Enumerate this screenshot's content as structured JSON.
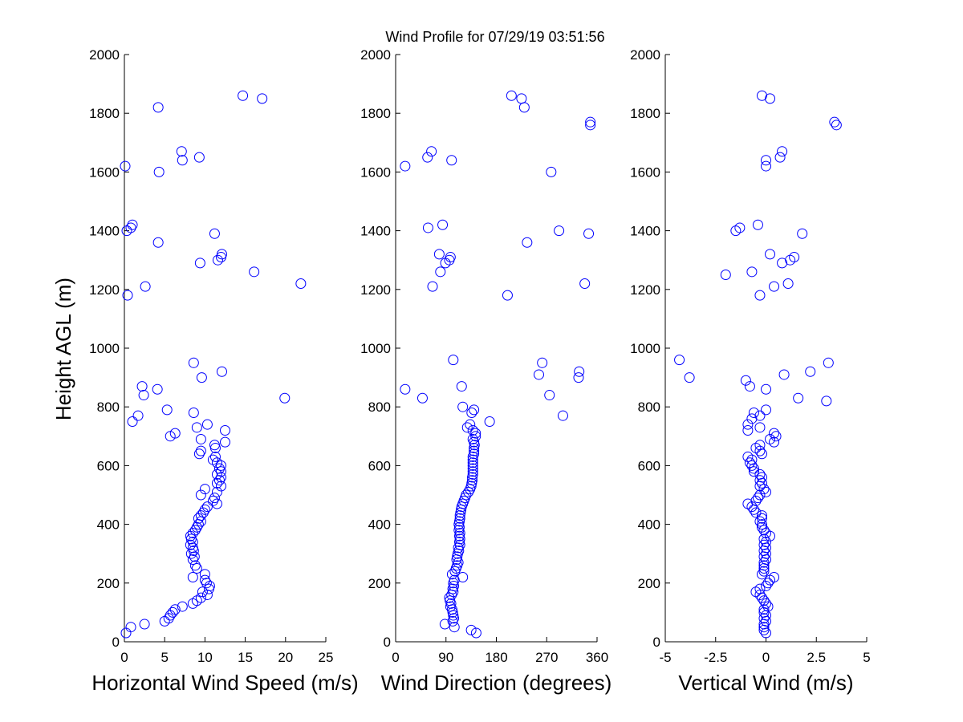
{
  "figure_title": "Wind Profile for  07/29/19 03:51:56",
  "ylabel": "Height AGL (m)",
  "marker_color": "#0000ff",
  "chart_data": [
    {
      "type": "scatter",
      "xlabel": "Horizontal Wind Speed (m/s)",
      "ylabel": "Height AGL (m)",
      "xlim": [
        0,
        25
      ],
      "ylim": [
        0,
        2000
      ],
      "xticks": [
        0,
        5,
        10,
        15,
        20,
        25
      ],
      "xtick_labels": [
        "0",
        "5",
        "10",
        "15",
        "20",
        "25"
      ],
      "yticks": [
        0,
        200,
        400,
        600,
        800,
        1000,
        1200,
        1400,
        1600,
        1800,
        2000
      ],
      "ytick_labels": [
        "0",
        "200",
        "400",
        "600",
        "800",
        "1000",
        "1200",
        "1400",
        "1600",
        "1800",
        "2000"
      ],
      "points": [
        [
          0.2,
          30
        ],
        [
          0.8,
          50
        ],
        [
          2.5,
          60
        ],
        [
          5.0,
          70
        ],
        [
          5.5,
          80
        ],
        [
          5.7,
          90
        ],
        [
          6.0,
          100
        ],
        [
          6.3,
          110
        ],
        [
          7.2,
          120
        ],
        [
          8.5,
          130
        ],
        [
          9.0,
          140
        ],
        [
          9.5,
          150
        ],
        [
          10.3,
          160
        ],
        [
          9.7,
          170
        ],
        [
          10.5,
          180
        ],
        [
          10.6,
          190
        ],
        [
          10.2,
          200
        ],
        [
          10.0,
          210
        ],
        [
          8.5,
          220
        ],
        [
          10.0,
          230
        ],
        [
          9.0,
          250
        ],
        [
          8.8,
          260
        ],
        [
          8.5,
          280
        ],
        [
          8.7,
          290
        ],
        [
          8.3,
          300
        ],
        [
          8.6,
          310
        ],
        [
          8.5,
          320
        ],
        [
          8.2,
          330
        ],
        [
          8.5,
          340
        ],
        [
          8.3,
          350
        ],
        [
          8.2,
          360
        ],
        [
          8.5,
          370
        ],
        [
          8.8,
          380
        ],
        [
          9.0,
          390
        ],
        [
          9.2,
          400
        ],
        [
          9.5,
          410
        ],
        [
          9.2,
          420
        ],
        [
          9.5,
          430
        ],
        [
          9.8,
          440
        ],
        [
          10.0,
          450
        ],
        [
          10.3,
          460
        ],
        [
          11.5,
          470
        ],
        [
          11.0,
          480
        ],
        [
          11.2,
          490
        ],
        [
          9.5,
          500
        ],
        [
          11.5,
          510
        ],
        [
          10.0,
          520
        ],
        [
          12.0,
          530
        ],
        [
          11.5,
          540
        ],
        [
          11.8,
          550
        ],
        [
          12.0,
          560
        ],
        [
          11.5,
          570
        ],
        [
          12.0,
          580
        ],
        [
          11.8,
          590
        ],
        [
          12.0,
          600
        ],
        [
          11.5,
          610
        ],
        [
          11.0,
          620
        ],
        [
          11.3,
          630
        ],
        [
          9.3,
          640
        ],
        [
          9.5,
          650
        ],
        [
          11.3,
          660
        ],
        [
          11.2,
          670
        ],
        [
          12.5,
          680
        ],
        [
          9.5,
          690
        ],
        [
          5.7,
          700
        ],
        [
          6.3,
          710
        ],
        [
          12.5,
          720
        ],
        [
          9.0,
          730
        ],
        [
          10.3,
          740
        ],
        [
          1.0,
          750
        ],
        [
          1.7,
          770
        ],
        [
          8.6,
          780
        ],
        [
          5.3,
          790
        ],
        [
          19.9,
          830
        ],
        [
          2.4,
          840
        ],
        [
          4.1,
          860
        ],
        [
          2.2,
          870
        ],
        [
          9.6,
          900
        ],
        [
          12.1,
          920
        ],
        [
          8.6,
          950
        ],
        [
          0.4,
          1180
        ],
        [
          2.6,
          1210
        ],
        [
          21.9,
          1220
        ],
        [
          16.1,
          1260
        ],
        [
          9.4,
          1290
        ],
        [
          11.6,
          1300
        ],
        [
          12.0,
          1310
        ],
        [
          12.1,
          1320
        ],
        [
          4.2,
          1360
        ],
        [
          11.2,
          1390
        ],
        [
          0.3,
          1400
        ],
        [
          0.8,
          1410
        ],
        [
          1.0,
          1420
        ],
        [
          4.3,
          1600
        ],
        [
          0.1,
          1620
        ],
        [
          7.2,
          1640
        ],
        [
          9.3,
          1650
        ],
        [
          7.1,
          1670
        ],
        [
          4.2,
          1820
        ],
        [
          17.1,
          1850
        ],
        [
          14.7,
          1860
        ]
      ]
    },
    {
      "type": "scatter",
      "xlabel": "Wind Direction (degrees)",
      "ylabel": "",
      "xlim": [
        0,
        360
      ],
      "ylim": [
        0,
        2000
      ],
      "xticks": [
        0,
        90,
        180,
        270,
        360
      ],
      "xtick_labels": [
        "0",
        "90",
        "180",
        "270",
        "360"
      ],
      "yticks": [
        0,
        200,
        400,
        600,
        800,
        1000,
        1200,
        1400,
        1600,
        1800,
        2000
      ],
      "ytick_labels": [
        "0",
        "200",
        "400",
        "600",
        "800",
        "1000",
        "1200",
        "1400",
        "1600",
        "1800",
        "2000"
      ],
      "points": [
        [
          144,
          30
        ],
        [
          135,
          40
        ],
        [
          105,
          50
        ],
        [
          88,
          60
        ],
        [
          102,
          70
        ],
        [
          104,
          80
        ],
        [
          103,
          90
        ],
        [
          102,
          100
        ],
        [
          101,
          110
        ],
        [
          98,
          120
        ],
        [
          99,
          130
        ],
        [
          97,
          140
        ],
        [
          96,
          150
        ],
        [
          100,
          160
        ],
        [
          103,
          170
        ],
        [
          102,
          180
        ],
        [
          104,
          190
        ],
        [
          103,
          200
        ],
        [
          105,
          210
        ],
        [
          120,
          220
        ],
        [
          101,
          230
        ],
        [
          106,
          240
        ],
        [
          108,
          250
        ],
        [
          110,
          260
        ],
        [
          112,
          270
        ],
        [
          109,
          280
        ],
        [
          110,
          290
        ],
        [
          111,
          300
        ],
        [
          113,
          310
        ],
        [
          112,
          320
        ],
        [
          115,
          330
        ],
        [
          114,
          340
        ],
        [
          115,
          350
        ],
        [
          114,
          360
        ],
        [
          115,
          370
        ],
        [
          113,
          380
        ],
        [
          114,
          390
        ],
        [
          113,
          400
        ],
        [
          114,
          410
        ],
        [
          115,
          420
        ],
        [
          115,
          430
        ],
        [
          116,
          440
        ],
        [
          117,
          450
        ],
        [
          118,
          460
        ],
        [
          120,
          470
        ],
        [
          122,
          480
        ],
        [
          124,
          490
        ],
        [
          126,
          500
        ],
        [
          130,
          510
        ],
        [
          133,
          520
        ],
        [
          135,
          530
        ],
        [
          136,
          540
        ],
        [
          137,
          550
        ],
        [
          137,
          560
        ],
        [
          138,
          570
        ],
        [
          138,
          580
        ],
        [
          138,
          590
        ],
        [
          138,
          600
        ],
        [
          138,
          610
        ],
        [
          138,
          620
        ],
        [
          138,
          630
        ],
        [
          140,
          640
        ],
        [
          140,
          650
        ],
        [
          140,
          660
        ],
        [
          141,
          670
        ],
        [
          140,
          680
        ],
        [
          138,
          690
        ],
        [
          143,
          700
        ],
        [
          143,
          710
        ],
        [
          138,
          720
        ],
        [
          128,
          730
        ],
        [
          133,
          740
        ],
        [
          168,
          750
        ],
        [
          299,
          770
        ],
        [
          136,
          780
        ],
        [
          140,
          790
        ],
        [
          120,
          800
        ],
        [
          48,
          830
        ],
        [
          275,
          840
        ],
        [
          17,
          860
        ],
        [
          118,
          870
        ],
        [
          327,
          900
        ],
        [
          256,
          910
        ],
        [
          328,
          920
        ],
        [
          262,
          950
        ],
        [
          103,
          960
        ],
        [
          200,
          1180
        ],
        [
          66,
          1210
        ],
        [
          338,
          1220
        ],
        [
          80,
          1260
        ],
        [
          89,
          1290
        ],
        [
          96,
          1300
        ],
        [
          98,
          1310
        ],
        [
          78,
          1320
        ],
        [
          235,
          1360
        ],
        [
          345,
          1390
        ],
        [
          292,
          1400
        ],
        [
          58,
          1410
        ],
        [
          84,
          1420
        ],
        [
          278,
          1600
        ],
        [
          17,
          1620
        ],
        [
          100,
          1640
        ],
        [
          57,
          1650
        ],
        [
          64,
          1670
        ],
        [
          348,
          1760
        ],
        [
          348,
          1770
        ],
        [
          230,
          1820
        ],
        [
          225,
          1850
        ],
        [
          207,
          1860
        ]
      ]
    },
    {
      "type": "scatter",
      "xlabel": "Vertical Wind (m/s)",
      "ylabel": "",
      "xlim": [
        -5,
        5
      ],
      "ylim": [
        0,
        2000
      ],
      "xticks": [
        -5,
        -2.5,
        0,
        2.5,
        5
      ],
      "xtick_labels": [
        "-5",
        "-2.5",
        "0",
        "2.5",
        "5"
      ],
      "yticks": [
        0,
        200,
        400,
        600,
        800,
        1000,
        1200,
        1400,
        1600,
        1800,
        2000
      ],
      "ytick_labels": [
        "0",
        "200",
        "400",
        "600",
        "800",
        "1000",
        "1200",
        "1400",
        "1600",
        "1800",
        "2000"
      ],
      "points": [
        [
          0.0,
          30
        ],
        [
          -0.1,
          40
        ],
        [
          -0.1,
          50
        ],
        [
          -0.1,
          60
        ],
        [
          0.0,
          70
        ],
        [
          -0.1,
          80
        ],
        [
          0.0,
          90
        ],
        [
          -0.1,
          100
        ],
        [
          -0.1,
          110
        ],
        [
          0.1,
          120
        ],
        [
          0.0,
          130
        ],
        [
          -0.1,
          140
        ],
        [
          -0.2,
          150
        ],
        [
          -0.3,
          160
        ],
        [
          -0.5,
          170
        ],
        [
          -0.3,
          180
        ],
        [
          0.0,
          190
        ],
        [
          0.1,
          200
        ],
        [
          0.2,
          210
        ],
        [
          0.4,
          220
        ],
        [
          -0.2,
          230
        ],
        [
          -0.1,
          240
        ],
        [
          -0.1,
          250
        ],
        [
          -0.1,
          260
        ],
        [
          -0.1,
          270
        ],
        [
          0.0,
          280
        ],
        [
          -0.1,
          290
        ],
        [
          0.0,
          300
        ],
        [
          -0.1,
          310
        ],
        [
          0.0,
          320
        ],
        [
          -0.1,
          330
        ],
        [
          0.0,
          340
        ],
        [
          -0.1,
          350
        ],
        [
          0.2,
          360
        ],
        [
          0.0,
          370
        ],
        [
          -0.1,
          380
        ],
        [
          -0.2,
          390
        ],
        [
          -0.2,
          400
        ],
        [
          -0.3,
          410
        ],
        [
          -0.2,
          420
        ],
        [
          -0.2,
          430
        ],
        [
          -0.5,
          440
        ],
        [
          -0.6,
          450
        ],
        [
          -0.7,
          460
        ],
        [
          -0.9,
          470
        ],
        [
          -0.5,
          480
        ],
        [
          -0.4,
          490
        ],
        [
          -0.3,
          500
        ],
        [
          -0.0,
          510
        ],
        [
          -0.1,
          520
        ],
        [
          -0.3,
          530
        ],
        [
          -0.2,
          540
        ],
        [
          -0.3,
          550
        ],
        [
          -0.2,
          560
        ],
        [
          -0.3,
          570
        ],
        [
          -0.6,
          580
        ],
        [
          -0.6,
          590
        ],
        [
          -0.7,
          600
        ],
        [
          -0.8,
          610
        ],
        [
          -0.7,
          620
        ],
        [
          -0.9,
          630
        ],
        [
          -0.2,
          640
        ],
        [
          -0.3,
          650
        ],
        [
          -0.5,
          660
        ],
        [
          -0.3,
          670
        ],
        [
          0.4,
          680
        ],
        [
          0.2,
          690
        ],
        [
          0.5,
          700
        ],
        [
          0.4,
          710
        ],
        [
          -0.9,
          720
        ],
        [
          -0.3,
          730
        ],
        [
          -0.9,
          740
        ],
        [
          -0.7,
          760
        ],
        [
          -0.3,
          770
        ],
        [
          -0.6,
          780
        ],
        [
          0.0,
          790
        ],
        [
          1.6,
          830
        ],
        [
          0.0,
          860
        ],
        [
          -0.8,
          870
        ],
        [
          -1.0,
          890
        ],
        [
          -3.8,
          900
        ],
        [
          0.9,
          910
        ],
        [
          2.2,
          920
        ],
        [
          3.1,
          950
        ],
        [
          -4.3,
          960
        ],
        [
          3.0,
          820
        ],
        [
          -0.3,
          1180
        ],
        [
          0.4,
          1210
        ],
        [
          1.1,
          1220
        ],
        [
          -2.0,
          1250
        ],
        [
          -0.7,
          1260
        ],
        [
          0.8,
          1290
        ],
        [
          1.2,
          1300
        ],
        [
          1.4,
          1310
        ],
        [
          0.2,
          1320
        ],
        [
          1.8,
          1390
        ],
        [
          -1.5,
          1400
        ],
        [
          -1.3,
          1410
        ],
        [
          -0.4,
          1420
        ],
        [
          0.0,
          1620
        ],
        [
          0.0,
          1640
        ],
        [
          0.7,
          1650
        ],
        [
          0.8,
          1670
        ],
        [
          3.5,
          1760
        ],
        [
          3.4,
          1770
        ],
        [
          0.2,
          1850
        ],
        [
          -0.2,
          1860
        ]
      ]
    }
  ]
}
